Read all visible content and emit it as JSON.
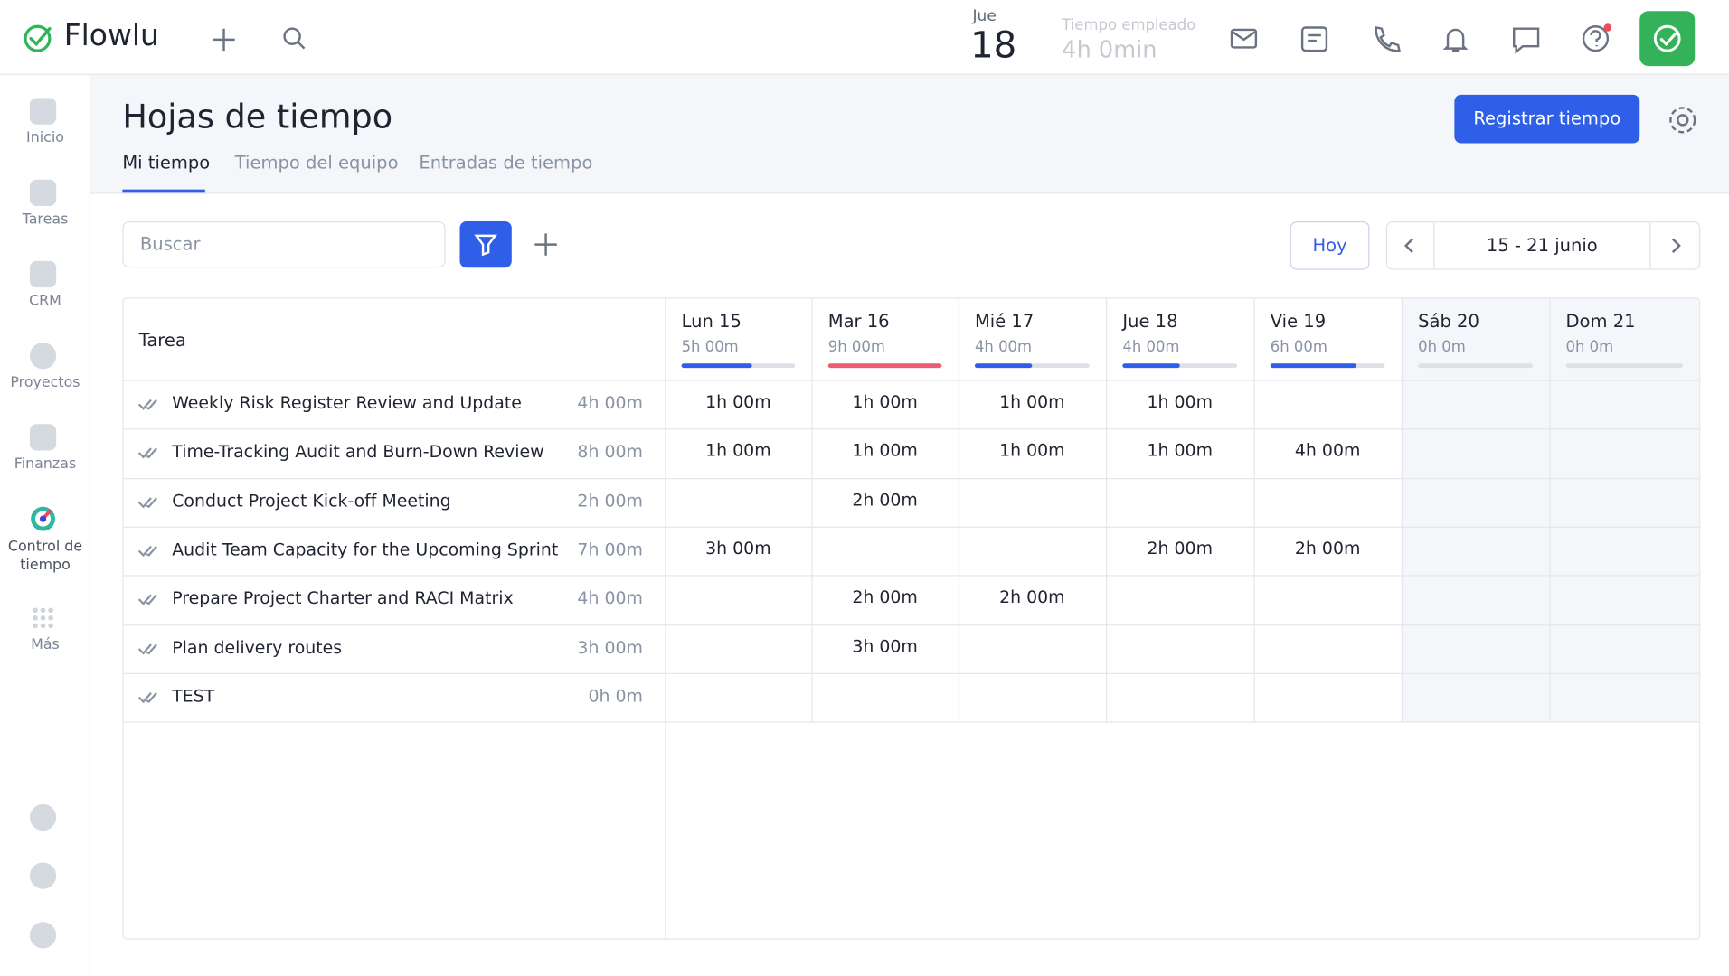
{
  "header": {
    "logo": "Flowlu",
    "day_name": "Jue",
    "day_number": "18",
    "time_label": "Tiempo empleado",
    "time_value": "4h 0min"
  },
  "sidebar": {
    "items": [
      "Inicio",
      "Tareas",
      "CRM",
      "Proyectos",
      "Finanzas",
      "Control de tiempo",
      "Más"
    ]
  },
  "page": {
    "title": "Hojas de tiempo",
    "tabs": [
      "Mi tiempo",
      "Tiempo del equipo",
      "Entradas de tiempo"
    ],
    "action": "Registrar tiempo"
  },
  "toolbar": {
    "search_placeholder": "Buscar",
    "today": "Hoy",
    "range": "15 - 21 junio"
  },
  "table": {
    "task_header": "Tarea",
    "days": [
      {
        "label": "Lun 15",
        "total": "5h 00m"
      },
      {
        "label": "Mar 16",
        "total": "9h 00m"
      },
      {
        "label": "Mié 17",
        "total": "4h 00m"
      },
      {
        "label": "Jue 18",
        "total": "4h 00m"
      },
      {
        "label": "Vie 19",
        "total": "6h 00m"
      },
      {
        "label": "Sáb 20",
        "total": "0h 0m"
      },
      {
        "label": "Dom 21",
        "total": "0h 0m"
      }
    ],
    "rows": [
      {
        "task": "Weekly Risk Register Review and Update",
        "total": "4h 00m",
        "cells": [
          "1h 00m",
          "1h 00m",
          "1h 00m",
          "1h 00m",
          null,
          null,
          null
        ]
      },
      {
        "task": "Time-Tracking Audit and Burn-Down Review",
        "total": "8h 00m",
        "cells": [
          "1h 00m",
          "1h 00m",
          "1h 00m",
          "1h 00m",
          "4h 00m",
          null,
          null
        ]
      },
      {
        "task": "Conduct Project Kick-off Meeting",
        "total": "2h 00m",
        "cells": [
          null,
          "2h 00m",
          null,
          null,
          null,
          null,
          null
        ]
      },
      {
        "task": "Audit Team Capacity for the Upcoming Sprint",
        "total": "7h 00m",
        "cells": [
          "3h 00m",
          null,
          null,
          "2h 00m",
          "2h 00m",
          null,
          null
        ]
      },
      {
        "task": "Prepare Project Charter and RACI Matrix",
        "total": "4h 00m",
        "cells": [
          null,
          "2h 00m",
          "2h 00m",
          null,
          null,
          null,
          null
        ]
      },
      {
        "task": "Plan delivery routes",
        "total": "3h 00m",
        "cells": [
          null,
          "3h 00m",
          null,
          null,
          null,
          null,
          null
        ]
      },
      {
        "task": "TEST",
        "total": "0h 0m",
        "cells": [
          null,
          null,
          null,
          null,
          null,
          null,
          null
        ]
      }
    ]
  }
}
